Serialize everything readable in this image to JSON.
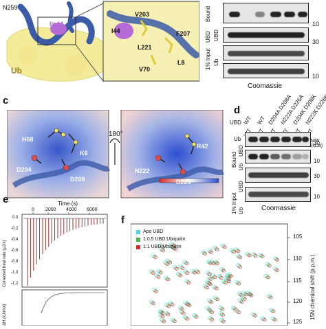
{
  "panel_a": {
    "residue_top_left": "N259",
    "ile44_label": "Ile44",
    "ub_label": "Ub",
    "zoom_residues": [
      "V203",
      "I44",
      "F207",
      "L221",
      "V70",
      "L8"
    ]
  },
  "panel_b": {
    "row_labels": [
      "Bound",
      "UBD",
      "1% Input",
      "UBD",
      "Ub"
    ],
    "mw": [
      "10",
      "30",
      "10"
    ],
    "footer": "Coomassie"
  },
  "panel_c": {
    "letter": "c",
    "rotation": "180°",
    "left_residues": [
      "H68",
      "K6",
      "D204",
      "D208"
    ],
    "right_residues": [
      "R42",
      "N222",
      "D226"
    ]
  },
  "panel_d": {
    "letter": "d",
    "ubd_label": "UBD",
    "ub_label": "Ub",
    "ubd_columns": [
      "WT",
      "WT",
      "D204A D208A",
      "N222A D226A",
      "D204K D208K",
      "N222K D226K"
    ],
    "ub_columns": [
      "WT",
      "WT",
      "WT",
      "WT",
      "WT",
      "WT"
    ],
    "mw_label": "MW (kDa)",
    "mw_values": [
      "30",
      "10",
      "30",
      "10"
    ],
    "row_labels": [
      "Bound",
      "UBD",
      "Ub",
      "1% Input",
      "UBD",
      "Ub"
    ],
    "footer": "Coomassie"
  },
  "panel_e": {
    "letter": "e",
    "time_label": "Time (s)",
    "time_ticks": [
      "0",
      "2000",
      "4000",
      "6000"
    ],
    "y_label_top": "Corrected heat rate (μJ/s)",
    "y_ticks_top": [
      "0.0",
      "-0.2",
      "-0.4",
      "-0.6",
      "-0.8",
      "-1.0",
      "-1.2"
    ],
    "y_label_bottom": "ΔH (kJ/mol)"
  },
  "panel_f": {
    "letter": "f",
    "y_label": "15N chemical shift (p.p.m.)",
    "y_ticks": [
      "105",
      "110",
      "115",
      "120",
      "125"
    ],
    "legend": [
      {
        "name": "Apo UBD",
        "color": "#4fd6e0"
      },
      {
        "name": "1:0.5 UBD:Ubiquitin",
        "color": "#4caf50"
      },
      {
        "name": "1:1 UBD:Ubiquitin",
        "color": "#d32f2f"
      }
    ]
  },
  "colors": {
    "protein_blue": "#3b5aa8",
    "ub_yellow": "#f3ea9a",
    "surface_red": "#d86a6a"
  }
}
